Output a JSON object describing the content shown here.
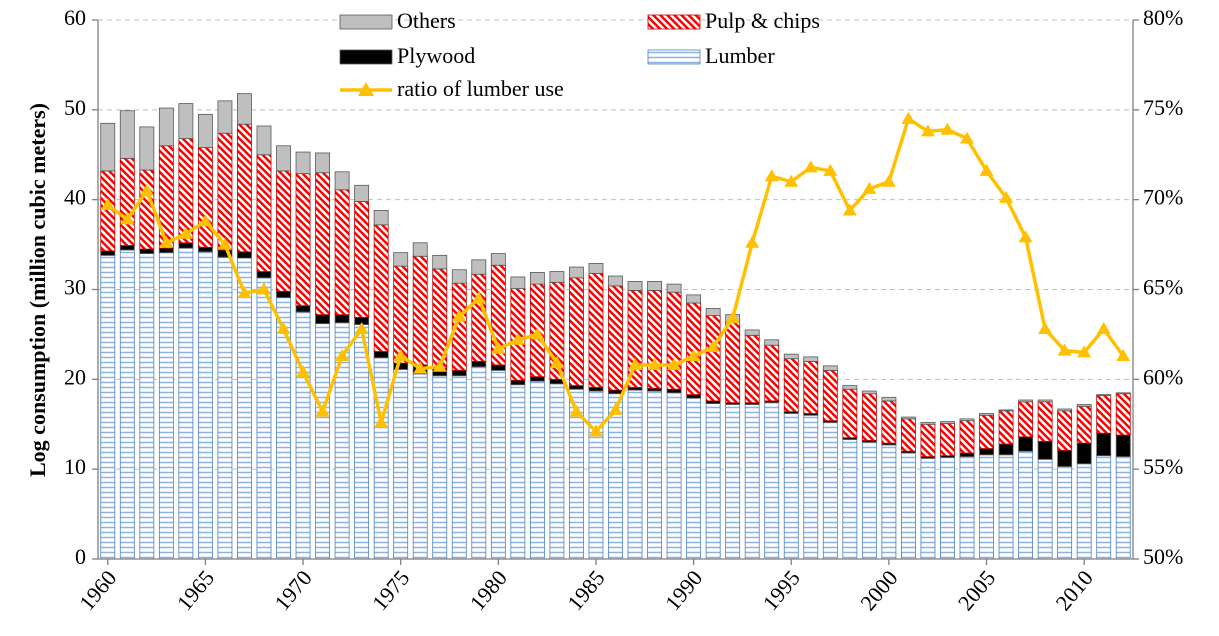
{
  "chart_data": {
    "type": "stacked-bar-line",
    "y_label": "Log consumption (million cubic meters)",
    "x": [
      1960,
      1961,
      1962,
      1963,
      1964,
      1965,
      1966,
      1967,
      1968,
      1969,
      1970,
      1971,
      1972,
      1973,
      1974,
      1975,
      1976,
      1977,
      1978,
      1979,
      1980,
      1981,
      1982,
      1983,
      1984,
      1985,
      1986,
      1987,
      1988,
      1989,
      1990,
      1991,
      1992,
      1993,
      1994,
      1995,
      1996,
      1997,
      1998,
      1999,
      2000,
      2001,
      2002,
      2003,
      2004,
      2005,
      2006,
      2007,
      2008,
      2009,
      2010,
      2011,
      2012
    ],
    "xlim": [
      1959.5,
      2012.5
    ],
    "xticks": [
      1960,
      1965,
      1970,
      1975,
      1980,
      1985,
      1990,
      1995,
      2000,
      2005,
      2010
    ],
    "ylim": [
      0,
      60
    ],
    "yticks": [
      0,
      10,
      20,
      30,
      40,
      50,
      60
    ],
    "y2lim": [
      50,
      80
    ],
    "y2ticks": [
      {
        "value": 50,
        "label": "50%"
      },
      {
        "value": 55,
        "label": "55%"
      },
      {
        "value": 60,
        "label": "60%"
      },
      {
        "value": 65,
        "label": "65%"
      },
      {
        "value": 70,
        "label": "70%"
      },
      {
        "value": 75,
        "label": "75%"
      },
      {
        "value": 80,
        "label": "80%"
      }
    ],
    "grid": true,
    "legend": "top",
    "series": [
      {
        "name": "Lumber",
        "type": "bar",
        "color": "#8db3e2",
        "hatch": "horizontal",
        "values": [
          33.8,
          34.4,
          34.0,
          34.1,
          34.6,
          34.2,
          33.6,
          33.5,
          31.3,
          29.1,
          27.5,
          26.2,
          26.3,
          26.1,
          22.4,
          21.1,
          20.6,
          20.4,
          20.4,
          21.4,
          21.0,
          19.4,
          19.8,
          19.5,
          18.9,
          18.7,
          18.4,
          18.8,
          18.7,
          18.5,
          17.9,
          17.3,
          17.2,
          17.2,
          17.4,
          16.2,
          16.0,
          15.2,
          13.3,
          13.0,
          12.7,
          11.8,
          11.2,
          11.3,
          11.4,
          11.6,
          11.6,
          12.0,
          11.1,
          10.3,
          10.6,
          11.5,
          11.4
        ]
      },
      {
        "name": "Plywood",
        "type": "bar",
        "color": "#000000",
        "hatch": "none",
        "values": [
          0.5,
          0.5,
          0.5,
          0.5,
          0.6,
          0.5,
          0.8,
          0.7,
          0.7,
          0.7,
          0.7,
          1.0,
          0.9,
          0.8,
          0.7,
          0.7,
          1.0,
          0.8,
          0.6,
          0.6,
          0.6,
          0.5,
          0.5,
          0.5,
          0.4,
          0.4,
          0.4,
          0.3,
          0.3,
          0.4,
          0.4,
          0.3,
          0.2,
          0.2,
          0.2,
          0.2,
          0.2,
          0.2,
          0.2,
          0.2,
          0.2,
          0.2,
          0.2,
          0.2,
          0.4,
          0.7,
          1.2,
          1.6,
          2.0,
          1.8,
          2.3,
          2.5,
          2.4
        ]
      },
      {
        "name": "Pulp & chips",
        "type": "bar",
        "color": "#ff0000",
        "hatch": "diagonal",
        "values": [
          8.9,
          9.7,
          8.8,
          11.4,
          11.6,
          11.1,
          13.0,
          14.2,
          13.0,
          13.4,
          14.7,
          15.8,
          13.9,
          12.9,
          14.1,
          10.8,
          12.1,
          11.1,
          9.7,
          9.7,
          11.1,
          10.2,
          10.3,
          10.8,
          12.0,
          12.7,
          11.6,
          10.8,
          10.9,
          10.8,
          10.2,
          9.5,
          9.0,
          7.5,
          6.2,
          5.9,
          5.8,
          5.6,
          5.4,
          5.2,
          4.7,
          3.6,
          3.6,
          3.6,
          3.6,
          3.7,
          3.7,
          3.9,
          4.4,
          4.4,
          4.1,
          4.2,
          4.6
        ]
      },
      {
        "name": "Others",
        "type": "bar",
        "color": "#bfbfbf",
        "hatch": "none",
        "values": [
          5.3,
          5.3,
          4.8,
          4.2,
          3.9,
          3.7,
          3.6,
          3.4,
          3.2,
          2.8,
          2.4,
          2.2,
          2.0,
          1.8,
          1.6,
          1.5,
          1.5,
          1.5,
          1.5,
          1.6,
          1.3,
          1.3,
          1.3,
          1.2,
          1.2,
          1.1,
          1.1,
          1.0,
          1.0,
          0.9,
          0.9,
          0.8,
          0.8,
          0.6,
          0.6,
          0.5,
          0.5,
          0.5,
          0.4,
          0.3,
          0.4,
          0.2,
          0.2,
          0.2,
          0.2,
          0.2,
          0.1,
          0.2,
          0.2,
          0.2,
          0.2,
          0.1,
          0.1
        ]
      },
      {
        "name": "ratio of lumber use",
        "type": "line",
        "axis": "y2",
        "color": "#ffc000",
        "marker": "triangle",
        "values": [
          69.7,
          68.9,
          70.5,
          67.6,
          68.1,
          68.8,
          67.5,
          64.8,
          65.0,
          62.8,
          60.4,
          58.2,
          61.3,
          62.8,
          57.6,
          61.3,
          60.6,
          60.7,
          63.5,
          64.5,
          61.7,
          62.2,
          62.5,
          60.9,
          58.2,
          57.1,
          58.3,
          60.8,
          60.8,
          60.8,
          61.3,
          61.8,
          63.4,
          67.6,
          71.3,
          71.0,
          71.8,
          71.6,
          69.4,
          70.6,
          71.0,
          74.5,
          73.8,
          73.9,
          73.4,
          71.6,
          70.1,
          67.9,
          62.8,
          61.6,
          61.5,
          62.8,
          61.3
        ]
      }
    ]
  }
}
